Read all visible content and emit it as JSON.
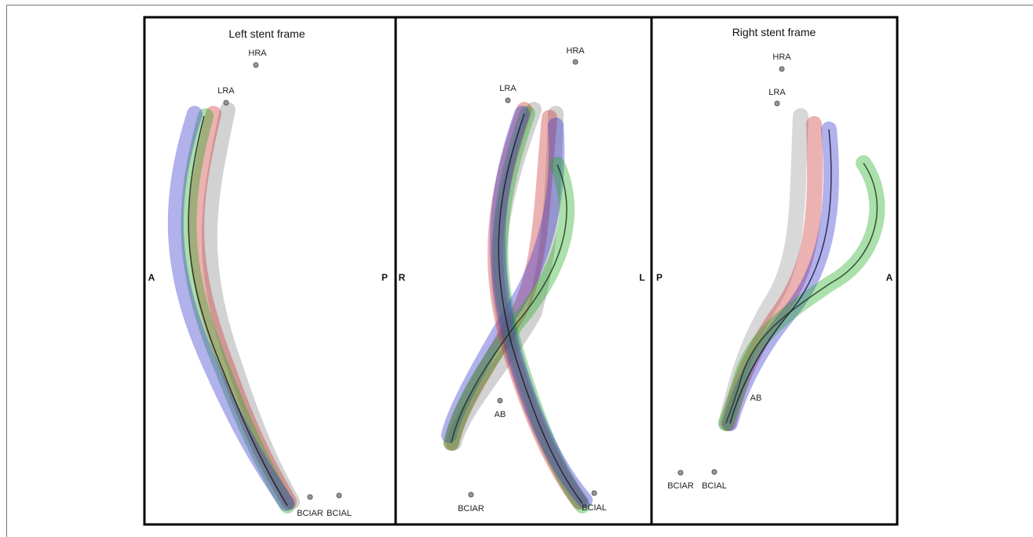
{
  "panels": [
    {
      "title": "Left stent frame",
      "left_label": "A",
      "right_label": "P",
      "landmarks": [
        "HRA",
        "LRA",
        "BCIAR",
        "BCIAL"
      ]
    },
    {
      "left_label": "R",
      "right_label": "L",
      "landmarks": [
        "HRA",
        "LRA",
        "AB",
        "BCIAR",
        "BCIAL"
      ]
    },
    {
      "title": "Right stent frame",
      "left_label": "P",
      "right_label": "A",
      "landmarks": [
        "HRA",
        "LRA",
        "AB",
        "BCIAR",
        "BCIAL"
      ]
    }
  ]
}
